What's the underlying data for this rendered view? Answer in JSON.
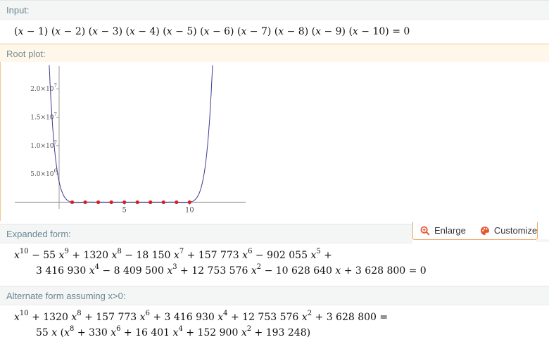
{
  "pods": {
    "input": {
      "title": "Input:"
    },
    "root_plot": {
      "title": "Root plot:"
    },
    "expanded": {
      "title": "Expanded form:"
    },
    "alternate": {
      "title": "Alternate form assuming x>0:"
    }
  },
  "input_equation": {
    "factors": [
      "(x − 1)",
      "(x − 2)",
      "(x − 3)",
      "(x − 4)",
      "(x − 5)",
      "(x − 6)",
      "(x − 7)",
      "(x − 8)",
      "(x − 9)",
      "(x − 10)"
    ],
    "rhs": "= 0"
  },
  "toolbar": {
    "enlarge_label": "Enlarge",
    "customize_label": "Customize",
    "accent": "#e4572e"
  },
  "expanded_form": {
    "line1": [
      {
        "t": "x",
        "e": "10"
      },
      {
        "t": " − 55 x",
        "e": "9"
      },
      {
        "t": " + 1320 x",
        "e": "8"
      },
      {
        "t": " − 18 150 x",
        "e": "7"
      },
      {
        "t": " + 157 773 x",
        "e": "6"
      },
      {
        "t": " − 902 055 x",
        "e": "5"
      },
      {
        "t": " +",
        "e": ""
      }
    ],
    "line2": [
      {
        "t": "3 416 930 x",
        "e": "4"
      },
      {
        "t": " − 8 409 500 x",
        "e": "3"
      },
      {
        "t": " + 12 753 576 x",
        "e": "2"
      },
      {
        "t": " − 10 628 640 x + 3 628 800 = 0",
        "e": ""
      }
    ]
  },
  "alternate_form": {
    "line1": [
      {
        "t": "x",
        "e": "10"
      },
      {
        "t": " + 1320 x",
        "e": "8"
      },
      {
        "t": " + 157 773 x",
        "e": "6"
      },
      {
        "t": " + 3 416 930 x",
        "e": "4"
      },
      {
        "t": " + 12 753 576 x",
        "e": "2"
      },
      {
        "t": " + 3 628 800 =",
        "e": ""
      }
    ],
    "line2": [
      {
        "t": "55 x (x",
        "e": "8"
      },
      {
        "t": " + 330 x",
        "e": "6"
      },
      {
        "t": " + 16 401 x",
        "e": "4"
      },
      {
        "t": " + 152 900 x",
        "e": "2"
      },
      {
        "t": " + 193 248)",
        "e": ""
      }
    ]
  },
  "chart_data": {
    "type": "line",
    "curve_color": "#3b3b8f",
    "root_color": "#d62020",
    "x_ticks": [
      "5",
      "10"
    ],
    "x_tick_values": [
      5,
      10
    ],
    "y_ticks": [
      "5.0×10^6",
      "1.0×10^7",
      "1.5×10^7",
      "2.0×10^7"
    ],
    "y_tick_values": [
      5000000,
      10000000,
      15000000,
      20000000
    ],
    "xlim": [
      -3.4,
      14.3
    ],
    "ylim": [
      -200000,
      24000000
    ],
    "function": "(x-1)(x-2)(x-3)(x-4)(x-5)(x-6)(x-7)(x-8)(x-9)(x-10)",
    "roots": [
      1,
      2,
      3,
      4,
      5,
      6,
      7,
      8,
      9,
      10
    ]
  }
}
